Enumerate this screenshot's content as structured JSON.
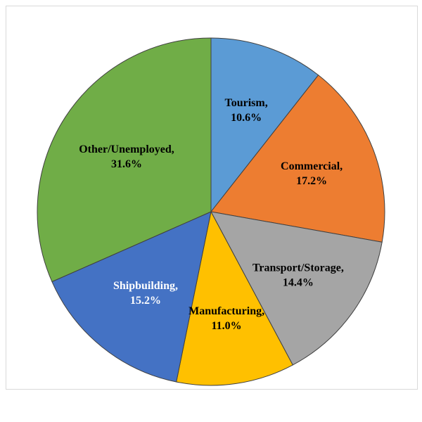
{
  "chart_data": {
    "type": "pie",
    "title": "",
    "categories": [
      "Tourism",
      "Commercial",
      "Transport/Storage",
      "Manufacturing",
      "Shipbuilding",
      "Other/Unemployed"
    ],
    "values": [
      10.6,
      17.2,
      14.4,
      11.0,
      15.2,
      31.6
    ],
    "labels": [
      {
        "name": "Tourism,",
        "value": "10.6%"
      },
      {
        "name": "Commercial,",
        "value": "17.2%"
      },
      {
        "name": "Transport/Storage,",
        "value": "14.4%"
      },
      {
        "name": "Manufacturing,",
        "value": "11.0%"
      },
      {
        "name": "Shipbuilding,",
        "value": "15.2%"
      },
      {
        "name": "Other/Unemployed,",
        "value": "31.6%"
      }
    ],
    "colors": [
      "#5b9bd5",
      "#ed7d31",
      "#a5a5a5",
      "#ffc000",
      "#4472c4",
      "#70ad47"
    ],
    "label_colors": [
      "#000000",
      "#000000",
      "#000000",
      "#000000",
      "#ffffff",
      "#000000"
    ],
    "start_angle_deg": 0,
    "direction": "clockwise",
    "legend": "none"
  }
}
